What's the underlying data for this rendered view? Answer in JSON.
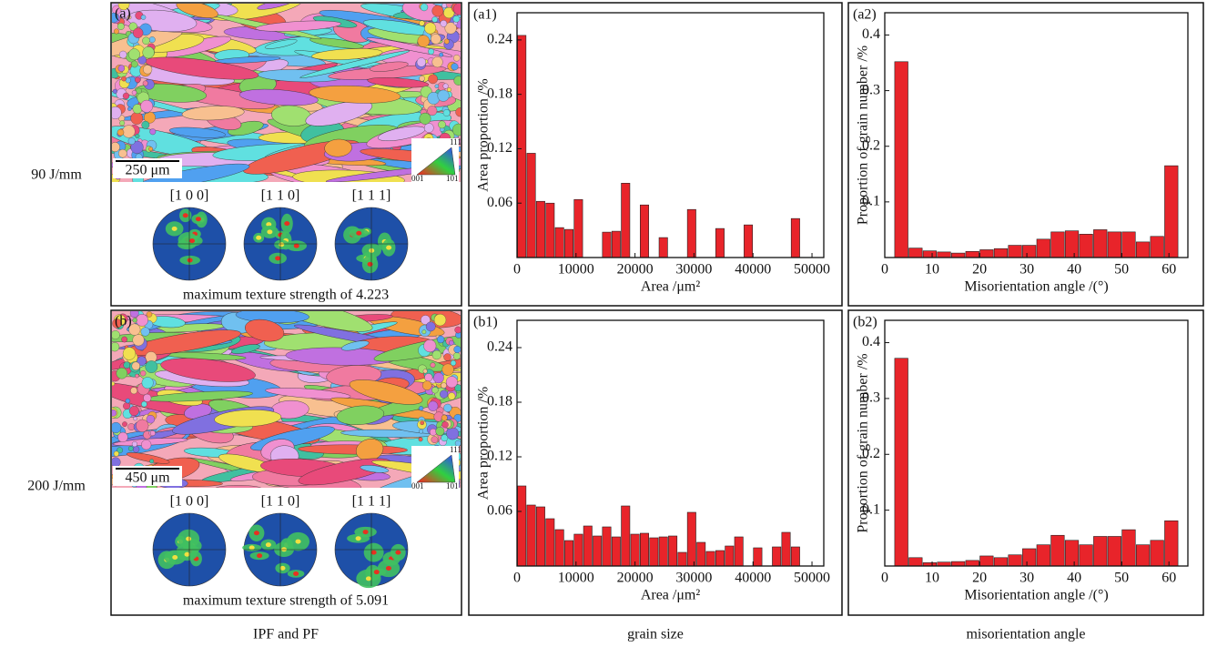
{
  "row_labels": [
    "90 J/mm",
    "200 J/mm"
  ],
  "column_labels": [
    "IPF and PF",
    "grain size",
    "misorientation angle"
  ],
  "panels": [
    {
      "label": "(a)",
      "scale_bar": "250 μm",
      "poles": [
        "[1 0 0]",
        "[1 1 0]",
        "[1 1 1]"
      ],
      "caption": "maximum texture strength of 4.223",
      "legend_ticks": [
        "111",
        "001",
        "101"
      ]
    },
    {
      "label": "(b)",
      "scale_bar": "450 μm",
      "poles": [
        "[1 0 0]",
        "[1 1 0]",
        "[1 1 1]"
      ],
      "caption": "maximum texture strength of 5.091",
      "legend_ticks": [
        "111",
        "001",
        "101"
      ]
    }
  ],
  "chart_data": [
    {
      "type": "histogram",
      "panel_label": "(a1)",
      "xlabel": "Area /μm²",
      "ylabel": "Area proportion /%",
      "color": "#e8242a",
      "bins": [
        0,
        1600,
        3200,
        4800,
        6400,
        8000,
        9600,
        11200,
        12800,
        14400,
        16000,
        17600,
        19200,
        20800,
        22400,
        24000,
        25600,
        27200,
        28800,
        30400,
        32000,
        33600,
        35200,
        36800,
        38400,
        40000,
        41600,
        43200,
        44800,
        46400,
        48000
      ],
      "values": [
        0.245,
        0.115,
        0.062,
        0.06,
        0.033,
        0.031,
        0.064,
        0,
        0,
        0.028,
        0.029,
        0.082,
        0,
        0.058,
        0,
        0.022,
        0,
        0,
        0.053,
        0,
        0,
        0.032,
        0,
        0,
        0.036,
        0,
        0,
        0,
        0,
        0.043
      ],
      "xlim": [
        0,
        52000
      ],
      "ylim": [
        0,
        0.27
      ],
      "xticks": [
        0,
        10000,
        20000,
        30000,
        40000,
        50000
      ],
      "yticks": [
        0.06,
        0.12,
        0.18,
        0.24
      ]
    },
    {
      "type": "histogram",
      "panel_label": "(a2)",
      "xlabel": "Misorientation angle /(°)",
      "ylabel": "Proportion of grain number /%",
      "color": "#e8242a",
      "bins": [
        2,
        5,
        8,
        11,
        14,
        17,
        20,
        23,
        26,
        29,
        32,
        35,
        38,
        41,
        44,
        47,
        50,
        53,
        56,
        59,
        62
      ],
      "values": [
        0.352,
        0.017,
        0.012,
        0.01,
        0.008,
        0.011,
        0.014,
        0.016,
        0.022,
        0.022,
        0.033,
        0.046,
        0.048,
        0.042,
        0.05,
        0.046,
        0.046,
        0.028,
        0.038,
        0.165
      ],
      "xlim": [
        0,
        64
      ],
      "ylim": [
        0,
        0.44
      ],
      "xticks": [
        0,
        10,
        20,
        30,
        40,
        50,
        60
      ],
      "yticks": [
        0.1,
        0.2,
        0.3,
        0.4
      ]
    },
    {
      "type": "histogram",
      "panel_label": "(b1)",
      "xlabel": "Area /μm²",
      "ylabel": "Area proportion /%",
      "color": "#e8242a",
      "bins": [
        0,
        1600,
        3200,
        4800,
        6400,
        8000,
        9600,
        11200,
        12800,
        14400,
        16000,
        17600,
        19200,
        20800,
        22400,
        24000,
        25600,
        27200,
        28800,
        30400,
        32000,
        33600,
        35200,
        36800,
        38400,
        40000,
        41600,
        43200,
        44800,
        46400,
        48000
      ],
      "values": [
        0.088,
        0.067,
        0.065,
        0.052,
        0.04,
        0.028,
        0.035,
        0.044,
        0.033,
        0.043,
        0.032,
        0.066,
        0.035,
        0.036,
        0.031,
        0.032,
        0.033,
        0.015,
        0.059,
        0.026,
        0.016,
        0.017,
        0.022,
        0.032,
        0,
        0.02,
        0,
        0.021,
        0.037,
        0.021
      ],
      "xlim": [
        0,
        52000
      ],
      "ylim": [
        0,
        0.27
      ],
      "xticks": [
        0,
        10000,
        20000,
        30000,
        40000,
        50000
      ],
      "yticks": [
        0.06,
        0.12,
        0.18,
        0.24
      ]
    },
    {
      "type": "histogram",
      "panel_label": "(b2)",
      "xlabel": "Misorientation angle /(°)",
      "ylabel": "Proportion of grain number /%",
      "color": "#e8242a",
      "bins": [
        2,
        5,
        8,
        11,
        14,
        17,
        20,
        23,
        26,
        29,
        32,
        35,
        38,
        41,
        44,
        47,
        50,
        53,
        56,
        59,
        62
      ],
      "values": [
        0.372,
        0.015,
        0.006,
        0.007,
        0.008,
        0.01,
        0.018,
        0.015,
        0.02,
        0.031,
        0.038,
        0.055,
        0.046,
        0.038,
        0.053,
        0.053,
        0.065,
        0.038,
        0.046,
        0.081
      ],
      "xlim": [
        0,
        64
      ],
      "ylim": [
        0,
        0.44
      ],
      "xticks": [
        0,
        10,
        20,
        30,
        40,
        50,
        60
      ],
      "yticks": [
        0.1,
        0.2,
        0.3,
        0.4
      ]
    }
  ]
}
